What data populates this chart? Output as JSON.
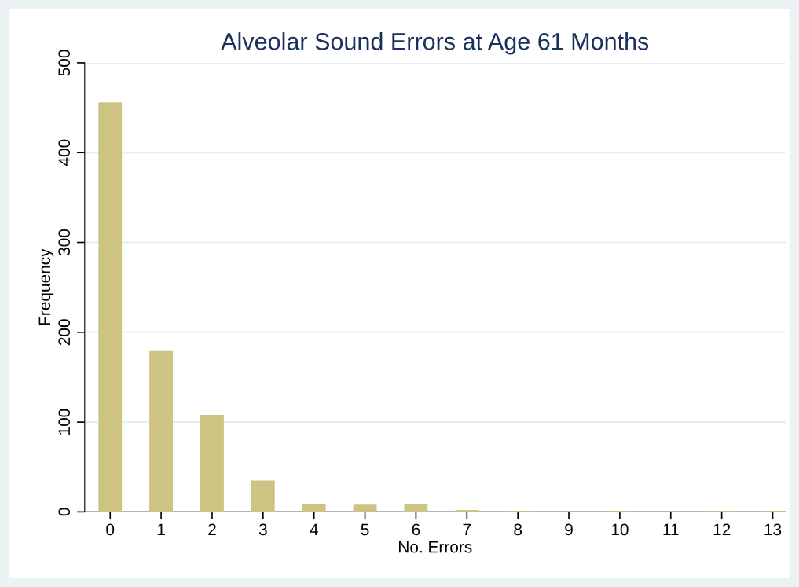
{
  "chart_data": {
    "type": "bar",
    "title": "Alveolar Sound Errors at Age 61 Months",
    "xlabel": "No. Errors",
    "ylabel": "Frequency",
    "x": [
      0,
      1,
      2,
      3,
      4,
      5,
      6,
      7,
      8,
      9,
      10,
      11,
      12,
      13
    ],
    "values": [
      456,
      179,
      108,
      35,
      9,
      8,
      9,
      2,
      1,
      0,
      1,
      0,
      1,
      1
    ],
    "color": "#cdc383",
    "xlim": [
      -0.5,
      13.25
    ],
    "xticks": [
      0,
      1,
      2,
      3,
      4,
      5,
      6,
      7,
      8,
      9,
      10,
      11,
      12,
      13
    ],
    "ylim": [
      0,
      500
    ],
    "yticks": [
      0,
      100,
      200,
      300,
      400,
      500
    ],
    "grid": "y",
    "legend": false
  }
}
